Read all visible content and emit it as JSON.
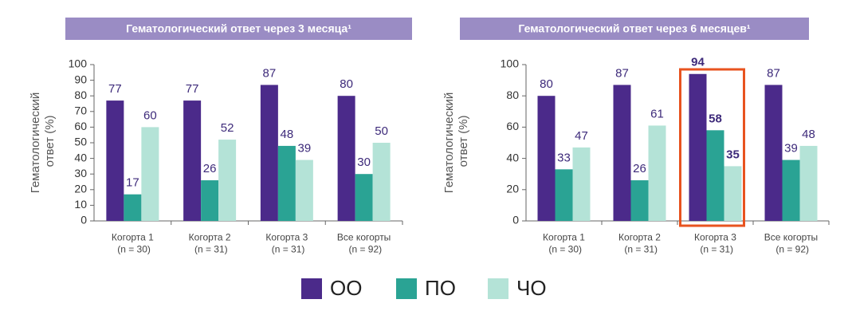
{
  "chart_data": [
    {
      "type": "bar",
      "title": "Гематологический ответ через 3 месяца¹",
      "ylabel": "Гематологический\nответ (%)",
      "categories": [
        "Когорта 1\n(n = 30)",
        "Когорта 2\n(n = 31)",
        "Когорта 3\n(n = 31)",
        "Все когорты\n(n = 92)"
      ],
      "series": [
        {
          "name": "ОО",
          "color": "#4b2a8a",
          "values": [
            77,
            77,
            87,
            80
          ]
        },
        {
          "name": "ПО",
          "color": "#2aa394",
          "values": [
            17,
            26,
            48,
            30
          ]
        },
        {
          "name": "ЧО",
          "color": "#b4e3d7",
          "values": [
            60,
            52,
            39,
            50
          ]
        }
      ],
      "ylim": [
        0,
        100
      ],
      "yticks": [
        0,
        10,
        20,
        30,
        40,
        50,
        60,
        70,
        80,
        90,
        100
      ],
      "grid": false
    },
    {
      "type": "bar",
      "title": "Гематологический ответ через 6 месяцев¹",
      "ylabel": "Гематологический\nответ (%)",
      "categories": [
        "Когорта 1\n(n = 30)",
        "Когорта 2\n(n = 31)",
        "Когорта 3\n(n = 31)",
        "Все когорты\n(n = 92)"
      ],
      "series": [
        {
          "name": "ОО",
          "color": "#4b2a8a",
          "values": [
            80,
            87,
            94,
            87
          ]
        },
        {
          "name": "ПО",
          "color": "#2aa394",
          "values": [
            33,
            26,
            58,
            39
          ]
        },
        {
          "name": "ЧО",
          "color": "#b4e3d7",
          "values": [
            47,
            61,
            35,
            48
          ]
        }
      ],
      "ylim": [
        0,
        100
      ],
      "yticks": [
        0,
        20,
        40,
        60,
        80,
        100
      ],
      "grid": false
    }
  ]
}
